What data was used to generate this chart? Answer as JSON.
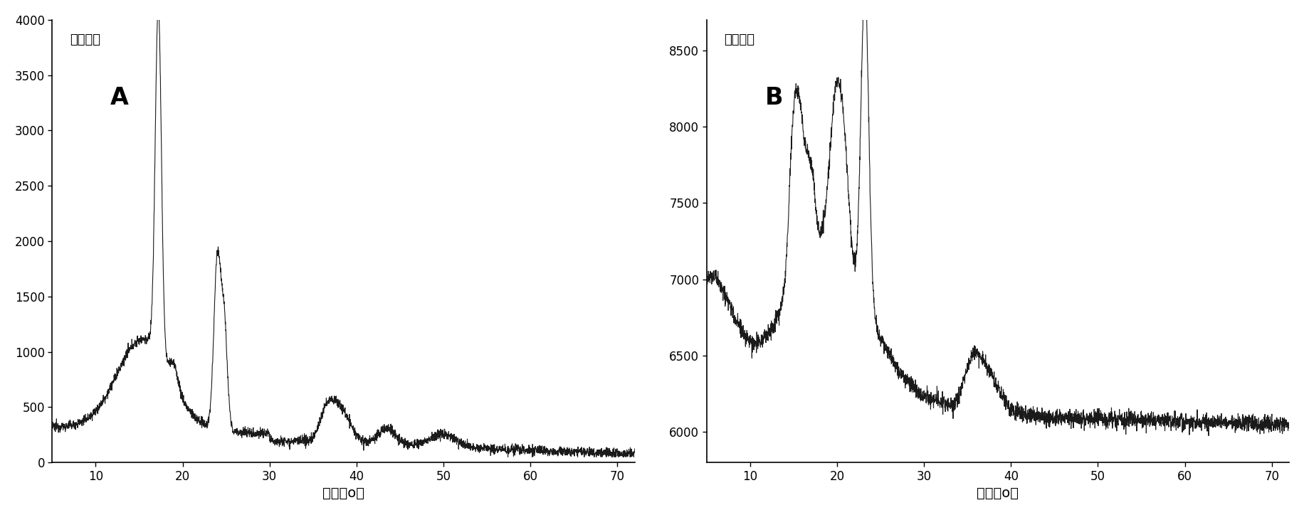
{
  "fig_width": 18.32,
  "fig_height": 7.24,
  "background_color": "#ffffff",
  "subplot_A": {
    "label": "A",
    "xlabel": "角度（o）",
    "ylabel": "信号强度",
    "xlim": [
      5,
      72
    ],
    "ylim": [
      0,
      4000
    ],
    "xticks": [
      10,
      20,
      30,
      40,
      50,
      60,
      70
    ],
    "yticks": [
      0,
      500,
      1000,
      1500,
      2000,
      2500,
      3000,
      3500,
      4000
    ]
  },
  "subplot_B": {
    "label": "B",
    "xlabel": "角度（o）",
    "ylabel": "信号强度",
    "xlim": [
      5,
      72
    ],
    "ylim": [
      5800,
      8700
    ],
    "xticks": [
      10,
      20,
      30,
      40,
      50,
      60,
      70
    ],
    "yticks": [
      6000,
      6500,
      7000,
      7500,
      8000,
      8500
    ]
  },
  "line_color": "#1a1a1a",
  "line_width": 0.8
}
